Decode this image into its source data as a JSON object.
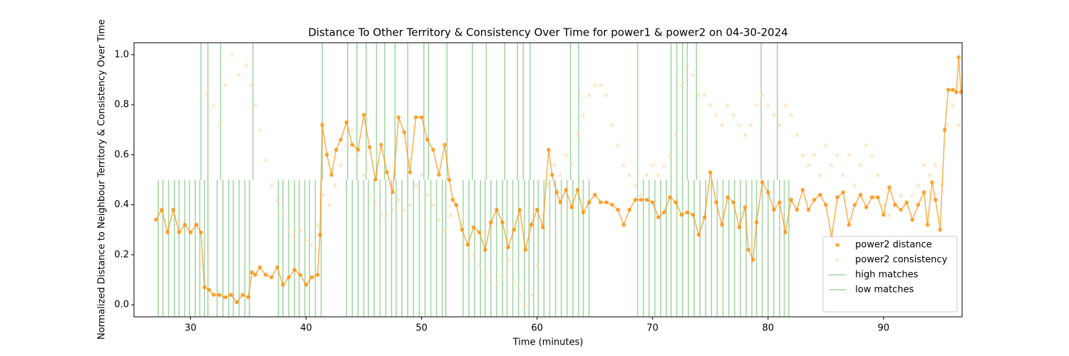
{
  "chart_data": {
    "type": "scatter",
    "title": "Distance To Other Territory & Consistency Over Time for power1 & power2 on 04-30-2024",
    "x_label": "Time (minutes)",
    "y_label": "Normalized Distance to Neighbour Territory & Consistency Over Time",
    "xlim": [
      25.1,
      96.8
    ],
    "ylim": [
      -0.048,
      1.048
    ],
    "xticks": [
      30,
      40,
      50,
      60,
      70,
      80,
      90
    ],
    "yticks": [
      {
        "value": 0,
        "label": "0.0"
      },
      0.2,
      0.4,
      0.6,
      0.8,
      {
        "value": 1,
        "label": "1.0"
      }
    ],
    "legend": "lower right",
    "series": [
      {
        "name": "power2 distance",
        "kind": "points-line",
        "color": "#ff8c00",
        "x": [
          27.0,
          27.5,
          28,
          28.5,
          29,
          29.5,
          30,
          30.5,
          30.9,
          31.2,
          31.6,
          32,
          32.5,
          33,
          33.5,
          34,
          34.5,
          35,
          35.3,
          35.6,
          36,
          36.5,
          37,
          37.5,
          38,
          38.5,
          39,
          39.5,
          40,
          40.5,
          41,
          41.2,
          41.4,
          41.8,
          42.2,
          42.6,
          43,
          43.5,
          44,
          44.5,
          45,
          45.5,
          46,
          46.5,
          47,
          47.5,
          48,
          48.5,
          49,
          49.5,
          50,
          50.5,
          51,
          51.5,
          52,
          52.4,
          52.7,
          53,
          53.5,
          54,
          54.5,
          55,
          55.5,
          56,
          56.5,
          57,
          57.5,
          58,
          58.5,
          59,
          59.5,
          60,
          60.5,
          61,
          61.3,
          61.7,
          62,
          62.5,
          63,
          63.5,
          64,
          64.5,
          65,
          65.5,
          66,
          66.5,
          67,
          67.5,
          68,
          68.5,
          69,
          69.5,
          70,
          70.5,
          71,
          71.5,
          72,
          72.5,
          73,
          73.5,
          74,
          74.5,
          75,
          75.5,
          76,
          76.5,
          77,
          77.5,
          78,
          78.3,
          78.7,
          79,
          79.5,
          80,
          80.5,
          81,
          81.5,
          82,
          82.5,
          83,
          83.5,
          84,
          84.5,
          85,
          85.5,
          86,
          86.5,
          87,
          87.5,
          88,
          88.5,
          89,
          89.5,
          90,
          90.5,
          91,
          91.5,
          92,
          92.5,
          93,
          93.5,
          93.8,
          94.2,
          94.5,
          94.9,
          95.3,
          95.6,
          96,
          96.3,
          96.5,
          96.7
        ],
        "values": [
          0.34,
          0.38,
          0.29,
          0.38,
          0.29,
          0.32,
          0.29,
          0.32,
          0.29,
          0.07,
          0.06,
          0.04,
          0.04,
          0.03,
          0.04,
          0.01,
          0.04,
          0.03,
          0.13,
          0.12,
          0.15,
          0.12,
          0.11,
          0.15,
          0.08,
          0.11,
          0.14,
          0.12,
          0.08,
          0.11,
          0.12,
          0.28,
          0.72,
          0.6,
          0.52,
          0.62,
          0.66,
          0.73,
          0.64,
          0.62,
          0.76,
          0.63,
          0.5,
          0.64,
          0.53,
          0.45,
          0.75,
          0.69,
          0.53,
          0.75,
          0.75,
          0.66,
          0.62,
          0.52,
          0.64,
          0.5,
          0.42,
          0.4,
          0.3,
          0.24,
          0.31,
          0.29,
          0.22,
          0.33,
          0.38,
          0.33,
          0.23,
          0.3,
          0.38,
          0.22,
          0.32,
          0.38,
          0.31,
          0.62,
          0.52,
          0.45,
          0.41,
          0.46,
          0.39,
          0.46,
          0.37,
          0.41,
          0.44,
          0.41,
          0.41,
          0.4,
          0.38,
          0.32,
          0.38,
          0.42,
          0.42,
          0.42,
          0.41,
          0.35,
          0.37,
          0.43,
          0.41,
          0.36,
          0.37,
          0.36,
          0.28,
          0.35,
          0.53,
          0.41,
          0.32,
          0.43,
          0.41,
          0.31,
          0.39,
          0.22,
          0.18,
          0.33,
          0.49,
          0.45,
          0.38,
          0.41,
          0.29,
          0.42,
          0.38,
          0.46,
          0.38,
          0.42,
          0.44,
          0.4,
          0.27,
          0.43,
          0.45,
          0.32,
          0.4,
          0.44,
          0.39,
          0.43,
          0.43,
          0.36,
          0.47,
          0.4,
          0.38,
          0.41,
          0.34,
          0.4,
          0.45,
          0.32,
          0.49,
          0.42,
          0.3,
          0.7,
          0.86,
          0.86,
          0.85,
          0.99,
          0.85
        ]
      },
      {
        "name": "power2 consistency",
        "kind": "points",
        "color": "#ffd8a8",
        "x": [
          31.4,
          32,
          32.5,
          33,
          33.6,
          34.2,
          34.8,
          35.2,
          35.6,
          36,
          36.5,
          37,
          37.5,
          38,
          38.5,
          39,
          39.5,
          40,
          40.5,
          41,
          41.5,
          42,
          42.5,
          43,
          43.5,
          44,
          44.5,
          45,
          45.5,
          46,
          46.5,
          47,
          47.5,
          48,
          48.5,
          49,
          49.5,
          50,
          50.5,
          51,
          51.5,
          52,
          52.5,
          53,
          53.5,
          54,
          54.5,
          55,
          55.5,
          56,
          56.5,
          57,
          57.5,
          58,
          58.5,
          59,
          59.5,
          60,
          60.5,
          61,
          61.5,
          62,
          62.5,
          63,
          63.5,
          64,
          64.5,
          65,
          65.5,
          66,
          66.5,
          67,
          67.5,
          68,
          68.5,
          69,
          69.5,
          70,
          70.5,
          71,
          71.5,
          72,
          72.5,
          73,
          73.5,
          74,
          74.5,
          75,
          75.5,
          76,
          76.5,
          77,
          77.5,
          78,
          78.5,
          79,
          79.5,
          80,
          80.5,
          81,
          81.5,
          82,
          82.5,
          83,
          83.5,
          84,
          84.5,
          85,
          85.5,
          86,
          86.5,
          87,
          87.5,
          88,
          88.5,
          89,
          89.5,
          90,
          90.5,
          91,
          91.5,
          92,
          92.5,
          93,
          93.5,
          94,
          94.5,
          95,
          95.5,
          96,
          96.5
        ],
        "values": [
          0.84,
          0.8,
          0.72,
          0.88,
          1.0,
          0.92,
          0.96,
          0.88,
          0.8,
          0.7,
          0.58,
          0.48,
          0.42,
          0.36,
          0.3,
          0.28,
          0.3,
          0.26,
          0.24,
          0.32,
          0.44,
          0.4,
          0.48,
          0.56,
          0.64,
          0.7,
          0.6,
          0.52,
          0.44,
          0.4,
          0.36,
          0.36,
          0.38,
          0.42,
          0.38,
          0.4,
          0.48,
          0.52,
          0.44,
          0.4,
          0.34,
          0.3,
          0.36,
          0.4,
          0.32,
          0.24,
          0.2,
          0.16,
          0.12,
          0.1,
          0.08,
          0.12,
          0.18,
          0.1,
          0.04,
          0.0,
          0.04,
          0.16,
          0.36,
          0.48,
          0.56,
          0.52,
          0.6,
          0.56,
          0.68,
          0.76,
          0.84,
          0.88,
          0.88,
          0.84,
          0.72,
          0.64,
          0.56,
          0.52,
          0.48,
          0.44,
          0.52,
          0.56,
          0.52,
          0.56,
          0.6,
          0.68,
          0.88,
          0.96,
          0.92,
          0.84,
          0.84,
          0.8,
          0.76,
          0.72,
          0.8,
          0.76,
          0.72,
          0.68,
          0.72,
          0.8,
          0.84,
          0.8,
          0.76,
          0.72,
          0.8,
          0.76,
          0.68,
          0.6,
          0.56,
          0.6,
          0.52,
          0.64,
          0.56,
          0.6,
          0.52,
          0.6,
          0.48,
          0.56,
          0.64,
          0.6,
          0.52,
          0.4,
          0.36,
          0.4,
          0.44,
          0.4,
          0.44,
          0.48,
          0.56,
          0.52,
          0.56,
          0.48,
          0.72,
          0.8,
          0.72
        ]
      },
      {
        "name": "high matches",
        "kind": "vline",
        "color": "#2ca02c",
        "y_from": 0.5,
        "x": [
          30.9,
          31.5,
          32.6,
          35.4,
          41.4,
          43.6,
          44.4,
          45.2,
          46.1,
          46.8,
          47.7,
          48.8,
          50.2,
          50.6,
          52.2,
          54.4,
          55.6,
          57.2,
          58.3,
          58.8,
          59.4,
          62.9,
          63.6,
          68.7,
          71.6,
          72.1,
          72.6,
          73.0,
          73.8,
          79.4,
          80.8
        ]
      },
      {
        "name": "low matches",
        "kind": "vline",
        "color": "#2ca02c",
        "y_to": 0.5,
        "x": [
          27.2,
          27.6,
          28.1,
          28.6,
          29.0,
          29.5,
          29.9,
          30.4,
          30.8,
          31.2,
          31.5,
          32.3,
          32.8,
          33.3,
          33.7,
          34.2,
          34.7,
          35.1,
          37.6,
          38.0,
          38.5,
          39.0,
          39.4,
          39.9,
          40.3,
          40.8,
          41.3,
          43.5,
          44.0,
          44.5,
          45.0,
          45.4,
          45.9,
          46.4,
          46.9,
          47.4,
          47.8,
          48.3,
          48.8,
          49.3,
          49.8,
          50.3,
          50.8,
          51.3,
          51.8,
          52.1,
          53.6,
          54.1,
          54.6,
          55.1,
          55.5,
          56.0,
          56.5,
          57.0,
          57.4,
          57.9,
          58.4,
          58.9,
          59.3,
          59.7,
          60.1,
          60.6,
          61.1,
          61.6,
          62.1,
          62.6,
          63.1,
          63.6,
          64.0,
          64.5,
          68.7,
          69.2,
          69.7,
          70.2,
          70.7,
          71.2,
          71.6,
          72.1,
          72.6,
          73.1,
          73.6,
          74.1,
          74.6,
          75.1,
          75.6,
          76.1,
          76.6,
          77.1,
          77.6,
          78.1,
          78.6,
          79.0,
          79.5,
          80.0,
          80.5,
          81.0,
          81.4,
          81.8
        ]
      }
    ]
  }
}
